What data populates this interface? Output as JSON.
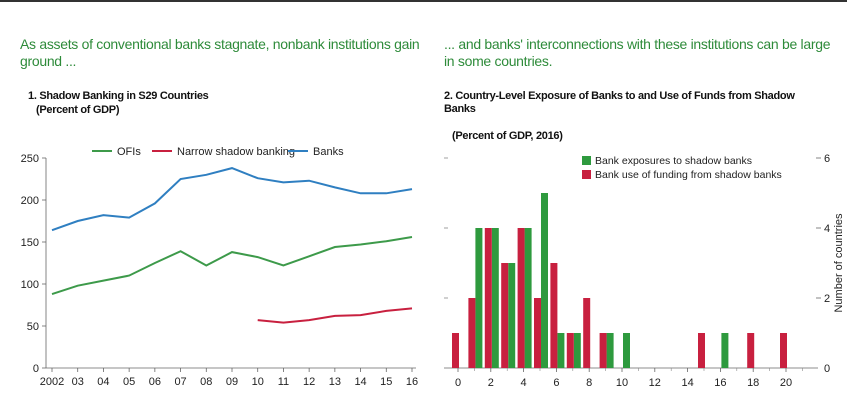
{
  "left": {
    "headline": "As assets of conventional banks stagnate, nonbank institutions gain ground ...",
    "chart_title": "1. Shadow Banking in S29 Countries",
    "chart_subtitle": "(Percent of GDP)"
  },
  "right": {
    "headline": "... and banks' interconnections with these institutions can be large in some countries.",
    "chart_title": "2. Country-Level Exposure of Banks to and Use of Funds from Shadow Banks",
    "chart_subtitle": "(Percent of GDP, 2016)"
  },
  "chart_data": [
    {
      "type": "line",
      "title": "1. Shadow Banking in S29 Countries",
      "subtitle": "(Percent of GDP)",
      "x": [
        "2002",
        "03",
        "04",
        "05",
        "06",
        "07",
        "08",
        "09",
        "10",
        "11",
        "12",
        "13",
        "14",
        "15",
        "16"
      ],
      "ylim": [
        0,
        250
      ],
      "yticks": [
        0,
        50,
        100,
        150,
        200,
        250
      ],
      "legend_position": "top",
      "series": [
        {
          "name": "OFIs",
          "color": "#3d9a4a",
          "values": [
            88,
            98,
            104,
            110,
            125,
            139,
            122,
            138,
            132,
            122,
            133,
            144,
            147,
            151,
            156
          ]
        },
        {
          "name": "Narrow shadow banking",
          "color": "#c8203f",
          "values": [
            null,
            null,
            null,
            null,
            null,
            null,
            null,
            null,
            57,
            54,
            57,
            62,
            63,
            68,
            71
          ]
        },
        {
          "name": "Banks",
          "color": "#2f7fc1",
          "values": [
            164,
            175,
            182,
            179,
            196,
            225,
            230,
            238,
            226,
            221,
            223,
            215,
            208,
            208,
            213
          ]
        }
      ]
    },
    {
      "type": "bar",
      "title": "2. Country-Level Exposure of Banks to and Use of Funds from Shadow Banks",
      "subtitle": "(Percent of GDP, 2016)",
      "x": [
        0,
        1,
        2,
        3,
        4,
        5,
        6,
        7,
        8,
        9,
        10,
        11,
        12,
        13,
        14,
        15,
        16,
        17,
        18,
        19,
        20,
        21
      ],
      "xticks": [
        0,
        2,
        4,
        6,
        8,
        10,
        12,
        14,
        16,
        18,
        20
      ],
      "ylabel": "Number of countries",
      "ylim": [
        0,
        6
      ],
      "yticks": [
        0,
        2,
        4,
        6
      ],
      "legend_position": "top-right",
      "series": [
        {
          "name": "Bank exposures to shadow banks",
          "color": "#2e9a3e",
          "values": [
            0,
            4,
            4,
            3,
            4,
            5,
            1,
            1,
            0,
            1,
            1,
            0,
            0,
            0,
            0,
            0,
            1,
            0,
            0,
            0,
            0,
            0
          ]
        },
        {
          "name": "Bank use of funding from shadow banks",
          "color": "#c8203f",
          "values": [
            1,
            2,
            4,
            3,
            4,
            2,
            3,
            1,
            2,
            1,
            0,
            0,
            0,
            0,
            0,
            1,
            0,
            0,
            1,
            0,
            1,
            0
          ]
        }
      ]
    }
  ]
}
